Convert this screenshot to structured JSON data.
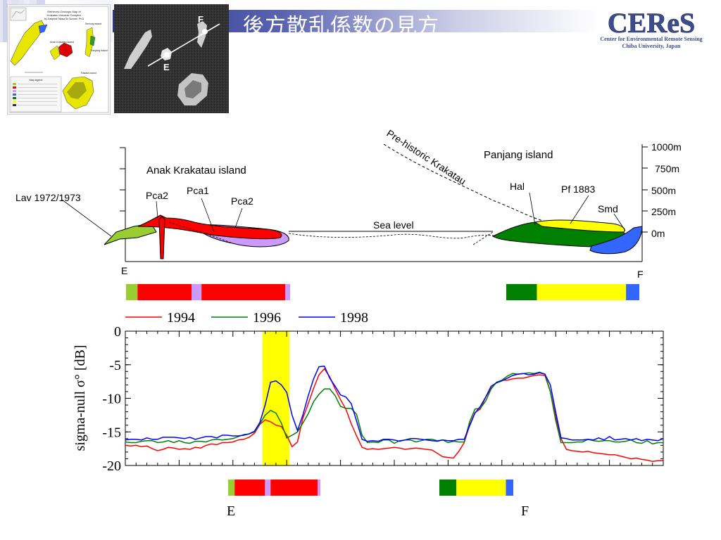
{
  "title": "後方散乱係数の見方",
  "logo": {
    "name": "CEReS",
    "line1": "Center for Environmental Remote Sensing",
    "line2": "Chiba University, Japan"
  },
  "satellite": {
    "label_e": "E",
    "label_f": "F"
  },
  "geomap": {
    "title_lines": [
      "Retrieved Geologic Map of",
      "Krakatau Volcanic Complex",
      "by Josephat Tabata Sri Sumarti, Ph.D"
    ],
    "labels": [
      "Rakata island",
      "Sertung island",
      "Panjang island",
      "Anak Krakatau island"
    ],
    "legend_title": "Map legend"
  },
  "section": {
    "lav": "Lav 1972/1973",
    "anak": "Anak Krakatau island",
    "pca2_left": "Pca2",
    "pca1": "Pca1",
    "pca2_right": "Pca2",
    "prehistoric": "Pre-historic Krakatau",
    "panjang": "Panjang island",
    "hal": "Hal",
    "pf": "Pf 1883",
    "smd": "Smd",
    "sea": "Sea level",
    "e": "E",
    "f": "F",
    "elev": [
      "1000m",
      "750m",
      "500m",
      "250m",
      "0m"
    ],
    "colors": {
      "lav": "#9acd32",
      "pca2": "#cc99ff",
      "pca1": "#ff0000",
      "hal": "#008000",
      "pf": "#ffff00",
      "smd": "#3366ff"
    },
    "strip_left": [
      {
        "c": "lav",
        "w": 0.07
      },
      {
        "c": "pca1",
        "w": 0.33
      },
      {
        "c": "pca2",
        "w": 0.06
      },
      {
        "c": "pca1",
        "w": 0.51
      },
      {
        "c": "pca2",
        "w": 0.03
      }
    ],
    "strip_right": [
      {
        "c": "hal",
        "w": 0.23
      },
      {
        "c": "pf",
        "w": 0.67
      },
      {
        "c": "smd",
        "w": 0.1
      }
    ]
  },
  "chart_data": {
    "type": "line",
    "legend": [
      "1994",
      "1996",
      "1998"
    ],
    "colors": [
      "#ff0000",
      "#008000",
      "#0000ff"
    ],
    "ylabel": "sigma-null σ° [dB]",
    "ylim": [
      -20,
      0
    ],
    "yticks": [
      "0",
      "-5",
      "-10",
      "-15",
      "-20"
    ],
    "xlabel_e": "E",
    "xlabel_f": "F",
    "x_count": 101,
    "highlight": {
      "from": 25.5,
      "to": 30.5
    },
    "series": [
      {
        "name": "1994",
        "values": [
          -17,
          -17.1,
          -17,
          -17.2,
          -17.1,
          -17.5,
          -17.8,
          -17.6,
          -17.3,
          -17.4,
          -17.6,
          -17.5,
          -17.6,
          -17.3,
          -17.4,
          -17,
          -16.8,
          -16.9,
          -16.6,
          -16.6,
          -16.5,
          -16.2,
          -16.1,
          -15.8,
          -15.2,
          -13.9,
          -13.2,
          -13.5,
          -14,
          -14.2,
          -15.5,
          -17.2,
          -16.5,
          -13,
          -10.8,
          -8.5,
          -6.5,
          -5.6,
          -6.8,
          -8.6,
          -10.2,
          -11.6,
          -13.8,
          -15.6,
          -17.3,
          -17.6,
          -17.5,
          -17.6,
          -17.5,
          -17.4,
          -17.3,
          -17.4,
          -17.6,
          -17.5,
          -17.4,
          -17.5,
          -17.6,
          -17.7,
          -18.2,
          -18.7,
          -18.8,
          -18.9,
          -17.9,
          -16.6,
          -14,
          -12.1,
          -11.6,
          -9.8,
          -8.5,
          -7.6,
          -7.3,
          -7.3,
          -7.1,
          -7,
          -7,
          -6.8,
          -6.6,
          -6.5,
          -6.6,
          -9,
          -12.7,
          -16,
          -17.6,
          -17.8,
          -17.9,
          -18,
          -17.9,
          -18.1,
          -18.2,
          -18.3,
          -18.4,
          -18.4,
          -18.6,
          -18.8,
          -19,
          -18.9,
          -19.1,
          -19.2,
          -19.4,
          -19.3,
          -19.3
        ]
      },
      {
        "name": "1996",
        "values": [
          -16.5,
          -16.6,
          -16.6,
          -16.4,
          -16.3,
          -16.3,
          -16.6,
          -16.5,
          -16.3,
          -16.6,
          -16.3,
          -16.6,
          -16.7,
          -16.4,
          -16.4,
          -16.5,
          -16.2,
          -16.1,
          -16.2,
          -16.1,
          -16,
          -15.7,
          -15.4,
          -15.3,
          -15,
          -13.8,
          -12.5,
          -11.8,
          -12.2,
          -13.7,
          -15.9,
          -15.5,
          -15,
          -13.7,
          -12.3,
          -10.5,
          -9.4,
          -8.6,
          -8.6,
          -9.6,
          -11.2,
          -11.5,
          -11.5,
          -12.4,
          -15.5,
          -16.6,
          -16.5,
          -16.6,
          -16.2,
          -16.2,
          -16.7,
          -16.3,
          -16.2,
          -16.2,
          -16.5,
          -16.3,
          -16.1,
          -16.1,
          -16.3,
          -16.2,
          -16.6,
          -16.4,
          -16.5,
          -16.5,
          -13.5,
          -11.6,
          -11.5,
          -10.4,
          -8.6,
          -7.6,
          -7.3,
          -6.7,
          -6.3,
          -6.4,
          -6.3,
          -6.2,
          -6.3,
          -6.1,
          -6.4,
          -9,
          -13.3,
          -16.6,
          -16.6,
          -16.6,
          -16.5,
          -16.5,
          -16.1,
          -16.3,
          -16.4,
          -16.3,
          -16.3,
          -16.5,
          -16.5,
          -16.4,
          -16.2,
          -16.6,
          -16.7,
          -16.3,
          -16.8,
          -16.6,
          -16.6
        ]
      },
      {
        "name": "1998",
        "values": [
          -16.2,
          -16.1,
          -16.1,
          -16.2,
          -15.9,
          -16.1,
          -16.1,
          -15.8,
          -15.8,
          -15.8,
          -15.9,
          -16,
          -15.8,
          -16.1,
          -15.9,
          -15.7,
          -15.7,
          -15.9,
          -15.5,
          -15.5,
          -15.6,
          -15.6,
          -15.5,
          -15.3,
          -14.9,
          -13.6,
          -11,
          -7.6,
          -7.4,
          -8,
          -9.1,
          -12.5,
          -14.8,
          -12.5,
          -9.6,
          -7.1,
          -5.3,
          -5.2,
          -7,
          -8.2,
          -9.5,
          -9.8,
          -10.8,
          -13.4,
          -16.1,
          -16.4,
          -16.3,
          -16.4,
          -16.1,
          -16.1,
          -16.2,
          -16.4,
          -16.2,
          -16,
          -16,
          -16.1,
          -16.2,
          -16.3,
          -16.4,
          -16.2,
          -16.3,
          -16.3,
          -16.1,
          -16.1,
          -14.1,
          -12.2,
          -11.2,
          -9.8,
          -8.2,
          -7.7,
          -7.4,
          -7,
          -6.6,
          -6.4,
          -6.3,
          -6.5,
          -6.4,
          -6.2,
          -6.4,
          -8,
          -12,
          -15.9,
          -16,
          -16.2,
          -16.2,
          -16.2,
          -16.1,
          -16.2,
          -15.9,
          -16.2,
          -15.7,
          -16.2,
          -16.1,
          -16,
          -16.2,
          -16,
          -16.3,
          -16.1,
          -16.2,
          -16.3,
          -16
        ]
      }
    ],
    "strip": [
      {
        "c": "lav",
        "w": 0.07
      },
      {
        "c": "pca1",
        "w": 0.33
      },
      {
        "c": "pca2",
        "w": 0.06
      },
      {
        "c": "pca1",
        "w": 0.51
      },
      {
        "c": "pca2",
        "w": 0.03
      }
    ],
    "strip_right": [
      {
        "c": "hal",
        "w": 0.23
      },
      {
        "c": "pf",
        "w": 0.67
      },
      {
        "c": "smd",
        "w": 0.1
      }
    ]
  }
}
